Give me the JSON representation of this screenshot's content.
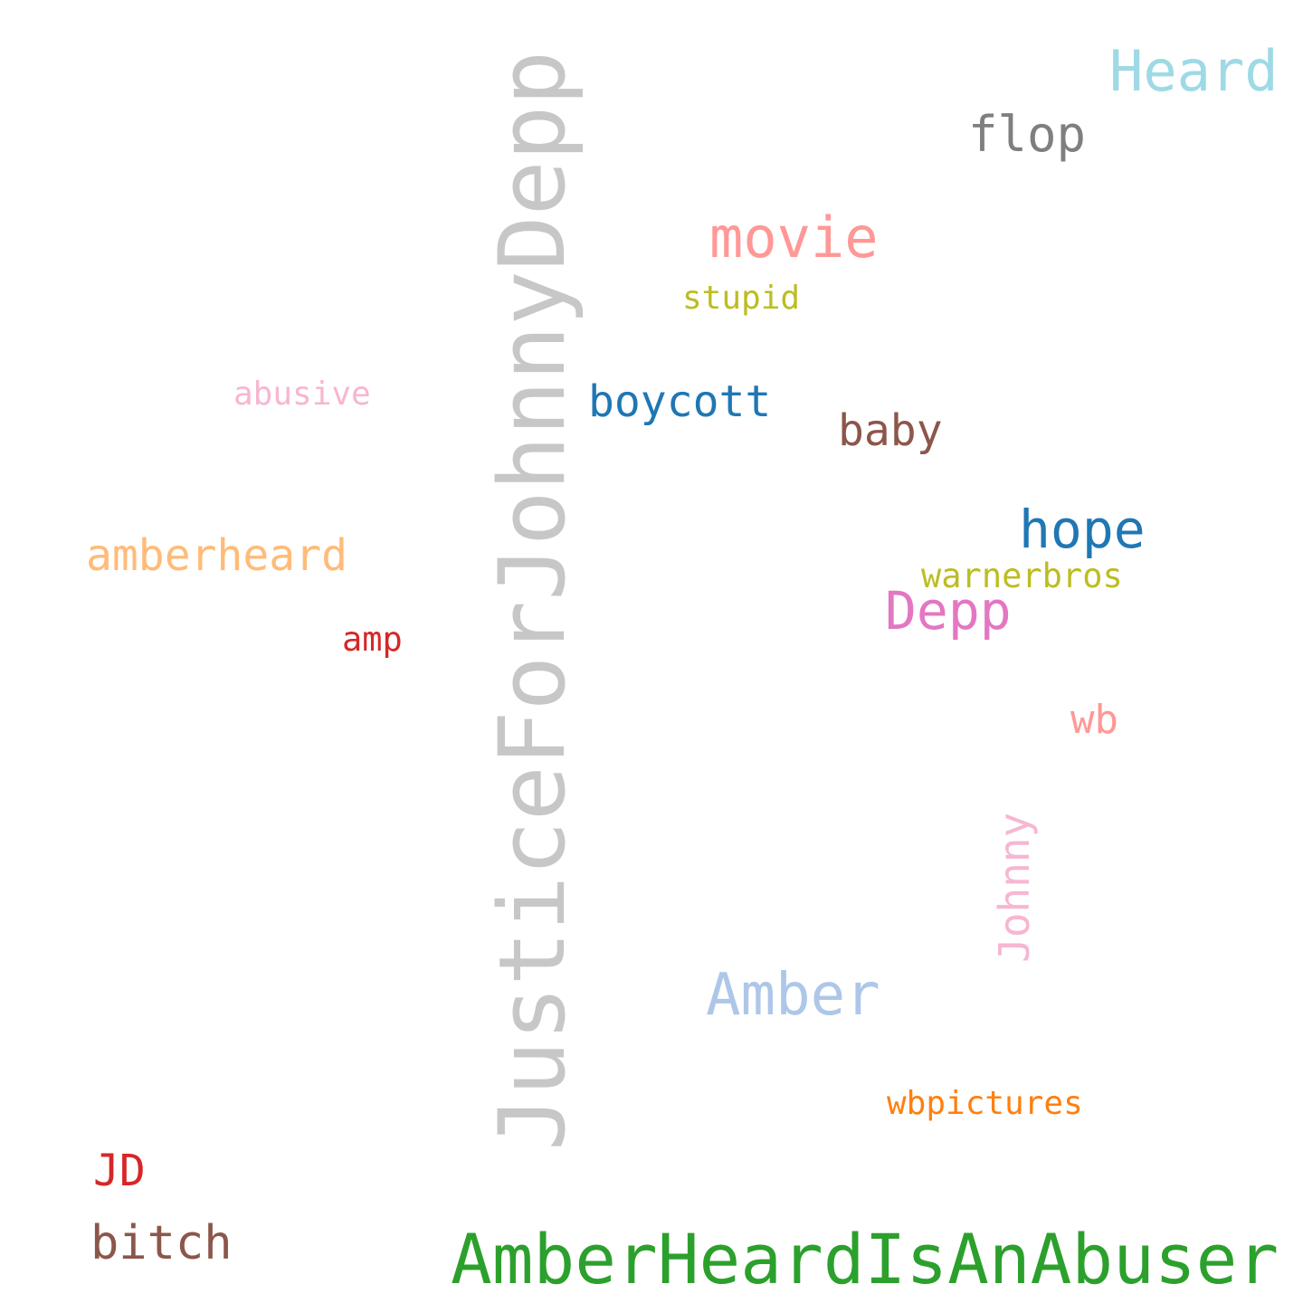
{
  "words": [
    {
      "text": "JusticeForJohnnyDepp",
      "color": "#c7c7c7"
    },
    {
      "text": "AmberHeardIsAnAbuser",
      "color": "#2ca02c"
    },
    {
      "text": "Heard",
      "color": "#9edae5"
    },
    {
      "text": "flop",
      "color": "#7f7f7f"
    },
    {
      "text": "movie",
      "color": "#ff9896"
    },
    {
      "text": "stupid",
      "color": "#bcbd22"
    },
    {
      "text": "abusive",
      "color": "#f7b6d2"
    },
    {
      "text": "boycott",
      "color": "#1f77b4"
    },
    {
      "text": "baby",
      "color": "#8c564b"
    },
    {
      "text": "hope",
      "color": "#1f77b4"
    },
    {
      "text": "warnerbros",
      "color": "#bcbd22"
    },
    {
      "text": "amberheard",
      "color": "#ffbb78"
    },
    {
      "text": "Depp",
      "color": "#e377c2"
    },
    {
      "text": "amp",
      "color": "#d62728"
    },
    {
      "text": "wb",
      "color": "#ff9896"
    },
    {
      "text": "Johnny",
      "color": "#f7b6d2"
    },
    {
      "text": "Amber",
      "color": "#aec7e8"
    },
    {
      "text": "wbpictures",
      "color": "#ff7f0e"
    },
    {
      "text": "JD",
      "color": "#d62728"
    },
    {
      "text": "bitch",
      "color": "#8c564b"
    }
  ]
}
